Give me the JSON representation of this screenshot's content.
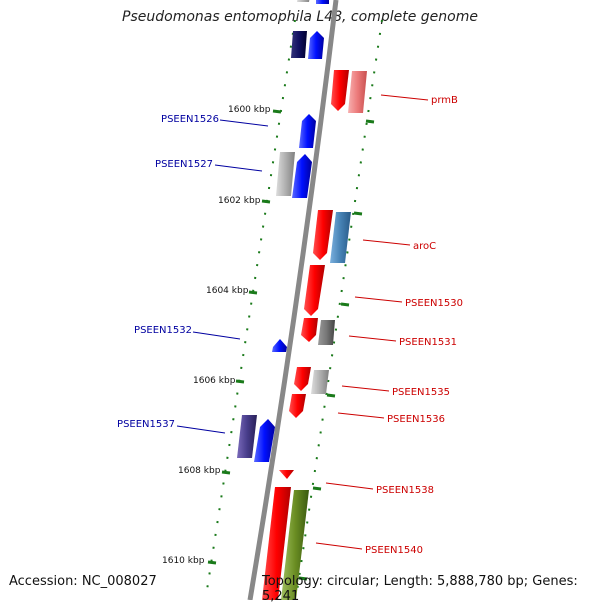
{
  "title": "Pseudomonas entomophila L48, complete genome",
  "accession": "Accession: NC_008027",
  "topology": "Topology: circular; Length: 5,888,780 bp; Genes: 5,241",
  "ticks": [
    {
      "label": "1600 kbp",
      "kbp": 1600
    },
    {
      "label": "1602 kbp",
      "kbp": 1602
    },
    {
      "label": "1604 kbp",
      "kbp": 1604
    },
    {
      "label": "1606 kbp",
      "kbp": 1606
    },
    {
      "label": "1608 kbp",
      "kbp": 1608
    },
    {
      "label": "1610 kbp",
      "kbp": 1610
    }
  ],
  "left_labels": [
    {
      "text": "PSEEN1526",
      "color": "#0000a0"
    },
    {
      "text": "PSEEN1527",
      "color": "#0000a0"
    },
    {
      "text": "PSEEN1532",
      "color": "#0000a0"
    },
    {
      "text": "PSEEN1537",
      "color": "#0000a0"
    }
  ],
  "right_labels": [
    {
      "text": "prmB",
      "color": "#cc0000"
    },
    {
      "text": "aroC",
      "color": "#cc0000"
    },
    {
      "text": "PSEEN1530",
      "color": "#cc0000"
    },
    {
      "text": "PSEEN1531",
      "color": "#cc0000"
    },
    {
      "text": "PSEEN1535",
      "color": "#cc0000"
    },
    {
      "text": "PSEEN1536",
      "color": "#cc0000"
    },
    {
      "text": "PSEEN1538",
      "color": "#cc0000"
    },
    {
      "text": "PSEEN1540",
      "color": "#cc0000"
    }
  ],
  "colors": {
    "backbone": "#888888",
    "tick": "#1a7a1a",
    "forward": "#e00000",
    "reverse": "#0000e8"
  }
}
